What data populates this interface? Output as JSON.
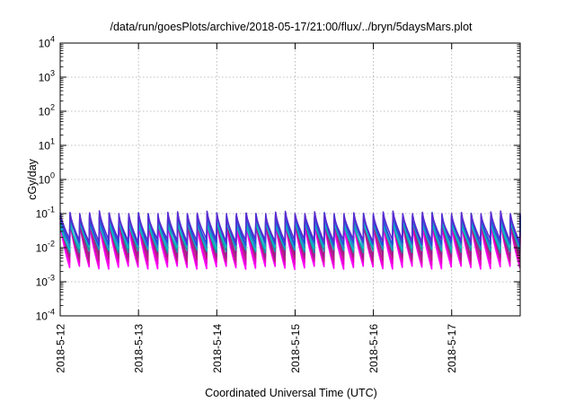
{
  "chart_data": {
    "type": "line",
    "title": "/data/run/goesPlots/archive/2018-05-17/21:00/flux/../bryn/5daysMars.plot",
    "xlabel": "Coordinated Universal Time (UTC)",
    "ylabel": "cGy/day",
    "y_scale": "log",
    "ylim": [
      0.0001,
      10000
    ],
    "xlim": [
      "2018-05-12 00:00",
      "2018-05-17 21:00"
    ],
    "x_ticks": [
      "2018-5-12",
      "2018-5-13",
      "2018-5-14",
      "2018-5-15",
      "2018-5-16",
      "2018-5-17"
    ],
    "y_ticks": [
      {
        "base": "10",
        "exp": "-4"
      },
      {
        "base": "10",
        "exp": "-3"
      },
      {
        "base": "10",
        "exp": "-2"
      },
      {
        "base": "10",
        "exp": "-1"
      },
      {
        "base": "10",
        "exp": "0"
      },
      {
        "base": "10",
        "exp": "1"
      },
      {
        "base": "10",
        "exp": "2"
      },
      {
        "base": "10",
        "exp": "3"
      },
      {
        "base": "10",
        "exp": "4"
      }
    ],
    "grid": true,
    "cycle_hours": 3,
    "series": [
      {
        "color": "#ff00ff",
        "peak": 0.055,
        "trough": 0.0026
      },
      {
        "color": "#e600c8",
        "peak": 0.065,
        "trough": 0.0034
      },
      {
        "color": "#b4237d",
        "peak": 0.07,
        "trough": 0.0045
      },
      {
        "color": "#9b1f8c",
        "peak": 0.08,
        "trough": 0.0058
      },
      {
        "color": "#1e90a0",
        "peak": 0.075,
        "trough": 0.0078
      },
      {
        "color": "#00c0c0",
        "peak": 0.06,
        "trough": 0.0095
      },
      {
        "color": "#2c7fd0",
        "peak": 0.085,
        "trough": 0.011
      },
      {
        "color": "#2050d8",
        "peak": 0.09,
        "trough": 0.013
      },
      {
        "color": "#5a2bd0",
        "peak": 0.1,
        "trough": 0.016
      }
    ]
  }
}
